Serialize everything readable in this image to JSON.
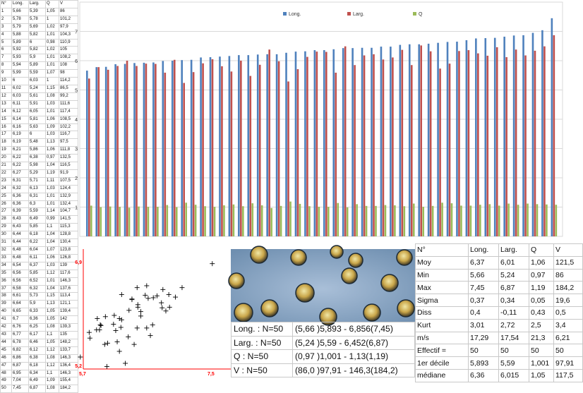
{
  "table": {
    "headers": [
      "N°",
      "Long.",
      "Larg.",
      "Q",
      "V"
    ],
    "rows": [
      [
        "1",
        "5,66",
        "5,39",
        "1,05",
        "86"
      ],
      [
        "2",
        "5,78",
        "5,78",
        "1",
        "101,2"
      ],
      [
        "3",
        "5,79",
        "5,69",
        "1,02",
        "97,9"
      ],
      [
        "4",
        "5,88",
        "5,82",
        "1,01",
        "104,3"
      ],
      [
        "5",
        "5,89",
        "6",
        "0,98",
        "110,9"
      ],
      [
        "6",
        "5,92",
        "5,82",
        "1,02",
        "105"
      ],
      [
        "7",
        "5,93",
        "5,9",
        "1,01",
        "108,2"
      ],
      [
        "8",
        "5,94",
        "5,89",
        "1,01",
        "108"
      ],
      [
        "9",
        "5,99",
        "5,59",
        "1,07",
        "98"
      ],
      [
        "10",
        "6",
        "6,03",
        "1",
        "114,2"
      ],
      [
        "11",
        "6,02",
        "5,24",
        "1,15",
        "86,5"
      ],
      [
        "12",
        "6,03",
        "5,61",
        "1,08",
        "99,2"
      ],
      [
        "13",
        "6,11",
        "5,91",
        "1,03",
        "111,6"
      ],
      [
        "14",
        "6,12",
        "6,05",
        "1,01",
        "117,4"
      ],
      [
        "15",
        "6,14",
        "5,81",
        "1,06",
        "108,5"
      ],
      [
        "16",
        "6,16",
        "5,63",
        "1,09",
        "102,2"
      ],
      [
        "17",
        "6,19",
        "6",
        "1,03",
        "116,7"
      ],
      [
        "18",
        "6,19",
        "5,48",
        "1,13",
        "97,5"
      ],
      [
        "19",
        "6,21",
        "5,86",
        "1,06",
        "111,8"
      ],
      [
        "20",
        "6,22",
        "6,38",
        "0,97",
        "132,5"
      ],
      [
        "21",
        "6,22",
        "5,98",
        "1,04",
        "116,5"
      ],
      [
        "22",
        "6,27",
        "5,29",
        "1,19",
        "91,9"
      ],
      [
        "23",
        "6,31",
        "5,71",
        "1,11",
        "107,5"
      ],
      [
        "24",
        "6,32",
        "6,13",
        "1,03",
        "124,4"
      ],
      [
        "25",
        "6,36",
        "6,31",
        "1,01",
        "132,9"
      ],
      [
        "26",
        "6,36",
        "6,3",
        "1,01",
        "132,4"
      ],
      [
        "27",
        "6,39",
        "5,59",
        "1,14",
        "104,7"
      ],
      [
        "28",
        "6,43",
        "6,49",
        "0,99",
        "141,5"
      ],
      [
        "29",
        "6,43",
        "5,85",
        "1,1",
        "115,3"
      ],
      [
        "30",
        "6,44",
        "6,18",
        "1,04",
        "128,8"
      ],
      [
        "31",
        "6,44",
        "6,22",
        "1,04",
        "130,4"
      ],
      [
        "32",
        "6,48",
        "6,04",
        "1,07",
        "123,8"
      ],
      [
        "33",
        "6,48",
        "6,11",
        "1,06",
        "126,8"
      ],
      [
        "34",
        "6,54",
        "6,37",
        "1,03",
        "139"
      ],
      [
        "35",
        "6,56",
        "5,85",
        "1,12",
        "117,6"
      ],
      [
        "36",
        "6,56",
        "6,52",
        "1,01",
        "146,3"
      ],
      [
        "37",
        "6,58",
        "6,32",
        "1,04",
        "137,6"
      ],
      [
        "38",
        "6,61",
        "5,73",
        "1,15",
        "113,4"
      ],
      [
        "39",
        "6,64",
        "5,9",
        "1,13",
        "121,1"
      ],
      [
        "40",
        "6,65",
        "6,33",
        "1,05",
        "139,4"
      ],
      [
        "41",
        "6,7",
        "6,36",
        "1,05",
        "142"
      ],
      [
        "42",
        "6,76",
        "6,25",
        "1,08",
        "139,3"
      ],
      [
        "43",
        "6,77",
        "6,17",
        "1,1",
        "135"
      ],
      [
        "44",
        "6,78",
        "6,46",
        "1,05",
        "148,2"
      ],
      [
        "45",
        "6,82",
        "6,12",
        "1,12",
        "133,7"
      ],
      [
        "46",
        "6,86",
        "6,38",
        "1,08",
        "146,3"
      ],
      [
        "47",
        "6,87",
        "6,18",
        "1,12",
        "136,4"
      ],
      [
        "48",
        "6,95",
        "6,34",
        "1,1",
        "146,3"
      ],
      [
        "49",
        "7,04",
        "6,49",
        "1,09",
        "155,4"
      ],
      [
        "50",
        "7,45",
        "6,87",
        "1,08",
        "184,2"
      ]
    ]
  },
  "chart_data": [
    {
      "type": "bar",
      "legend_position": "top",
      "grid": true,
      "ylim": [
        0,
        8
      ],
      "yticks": [
        "1",
        "2",
        "3",
        "4",
        "5",
        "6",
        "7"
      ],
      "legend": [
        "Long.",
        "Larg.",
        "Q"
      ],
      "colors": [
        "#4f81bd",
        "#c0504d",
        "#9bbb59"
      ],
      "series": [
        {
          "name": "Long.",
          "values": [
            5.66,
            5.78,
            5.79,
            5.88,
            5.89,
            5.92,
            5.93,
            5.94,
            5.99,
            6,
            6.02,
            6.03,
            6.11,
            6.12,
            6.14,
            6.16,
            6.19,
            6.19,
            6.21,
            6.22,
            6.22,
            6.27,
            6.31,
            6.32,
            6.36,
            6.36,
            6.39,
            6.43,
            6.43,
            6.44,
            6.44,
            6.48,
            6.48,
            6.54,
            6.56,
            6.56,
            6.58,
            6.61,
            6.64,
            6.65,
            6.7,
            6.76,
            6.77,
            6.78,
            6.82,
            6.86,
            6.87,
            6.95,
            7.04,
            7.45
          ]
        },
        {
          "name": "Larg.",
          "values": [
            5.39,
            5.78,
            5.69,
            5.82,
            6,
            5.82,
            5.9,
            5.89,
            5.59,
            6.03,
            5.24,
            5.61,
            5.91,
            6.05,
            5.81,
            5.63,
            6,
            5.48,
            5.86,
            6.38,
            5.98,
            5.29,
            5.71,
            6.13,
            6.31,
            6.3,
            5.59,
            6.49,
            5.85,
            6.18,
            6.22,
            6.04,
            6.11,
            6.37,
            5.85,
            6.52,
            6.32,
            5.73,
            5.9,
            6.33,
            6.36,
            6.25,
            6.17,
            6.46,
            6.12,
            6.38,
            6.18,
            6.34,
            6.49,
            6.87
          ]
        },
        {
          "name": "Q",
          "values": [
            1.05,
            1,
            1.02,
            1.01,
            0.98,
            1.02,
            1.01,
            1.01,
            1.07,
            1,
            1.15,
            1.08,
            1.03,
            1.01,
            1.06,
            1.09,
            1.03,
            1.13,
            1.06,
            0.97,
            1.04,
            1.19,
            1.11,
            1.03,
            1.01,
            1.01,
            1.14,
            0.99,
            1.1,
            1.04,
            1.04,
            1.07,
            1.06,
            1.03,
            1.12,
            1.01,
            1.04,
            1.15,
            1.13,
            1.05,
            1.05,
            1.08,
            1.1,
            1.05,
            1.12,
            1.08,
            1.12,
            1.1,
            1.09,
            1.08
          ]
        }
      ]
    },
    {
      "type": "scatter",
      "xlim": [
        5.7,
        7.5
      ],
      "ylim": [
        5.2,
        6.9
      ],
      "xtick_labels": [
        "5,7",
        "7,5"
      ],
      "ytick_labels": [
        "5,2",
        "6,9"
      ],
      "color": "#ff0000",
      "x": [
        5.66,
        5.78,
        5.79,
        5.88,
        5.89,
        5.92,
        5.93,
        5.94,
        5.99,
        6,
        6.02,
        6.03,
        6.11,
        6.12,
        6.14,
        6.16,
        6.19,
        6.19,
        6.21,
        6.22,
        6.22,
        6.27,
        6.31,
        6.32,
        6.36,
        6.36,
        6.39,
        6.43,
        6.43,
        6.44,
        6.44,
        6.48,
        6.48,
        6.54,
        6.56,
        6.56,
        6.58,
        6.61,
        6.64,
        6.65,
        6.7,
        6.76,
        6.77,
        6.78,
        6.82,
        6.86,
        6.87,
        6.95,
        7.04,
        7.45
      ],
      "y": [
        5.39,
        5.78,
        5.69,
        5.82,
        6,
        5.82,
        5.9,
        5.89,
        5.59,
        6.03,
        5.24,
        5.61,
        5.91,
        6.05,
        5.81,
        5.63,
        6,
        5.48,
        5.86,
        6.38,
        5.98,
        5.29,
        5.71,
        6.13,
        6.31,
        6.3,
        5.59,
        6.49,
        5.85,
        6.18,
        6.22,
        6.04,
        6.11,
        6.37,
        5.85,
        6.52,
        6.32,
        5.73,
        5.9,
        6.33,
        6.36,
        6.25,
        6.17,
        6.46,
        6.12,
        6.38,
        6.18,
        6.34,
        6.49,
        6.87
      ]
    }
  ],
  "ranges": [
    {
      "label": "Long. : N=50",
      "value": "(5,66 )5,893 - 6,856(7,45)"
    },
    {
      "label": "Larg. : N=50",
      "value": "(5,24 )5,59 - 6,452(6,87)"
    },
    {
      "label": "Q : N=50",
      "value": "(0,97 )1,001 - 1,13(1,19)"
    },
    {
      "label": "V : N=50",
      "value": "(86,0 )97,91 - 146,3(184,2)"
    }
  ],
  "stats": {
    "headers": [
      "N°",
      "Long.",
      "Larg.",
      "Q",
      "V"
    ],
    "rows": [
      [
        "Moy",
        "6,37",
        "6,01",
        "1,06",
        "121,5"
      ],
      [
        "Min",
        "5,66",
        "5,24",
        "0,97",
        "86"
      ],
      [
        "Max",
        "7,45",
        "6,87",
        "1,19",
        "184,2"
      ],
      [
        "Sigma",
        "0,37",
        "0,34",
        "0,05",
        "19,6"
      ],
      [
        "Diss",
        "0,4",
        "-0,11",
        "0,43",
        "0,5"
      ],
      [
        "Kurt",
        "3,01",
        "2,72",
        "2,5",
        "3,4"
      ],
      [
        "m/s",
        "17,29",
        "17,54",
        "21,3",
        "6,21"
      ],
      [
        "Effectif =",
        "50",
        "50",
        "50",
        "50"
      ],
      [
        "1er décile",
        "5,893",
        "5,59",
        "1,001",
        "97,91"
      ],
      [
        "médiane",
        "6,36",
        "6,015",
        "1,05",
        "117,5"
      ]
    ]
  }
}
